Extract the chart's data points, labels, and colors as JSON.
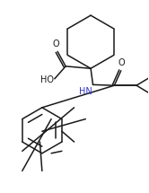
{
  "bg_color": "#ffffff",
  "line_color": "#1a1a1a",
  "text_color": "#1a1a1a",
  "blue_color": "#3333cc",
  "label_HN": "HN",
  "label_HO": "HO",
  "label_O1": "O",
  "label_O2": "O",
  "figsize": [
    1.66,
    2.15
  ],
  "dpi": 100,
  "xlim": [
    0,
    10
  ],
  "ylim": [
    0,
    13
  ]
}
